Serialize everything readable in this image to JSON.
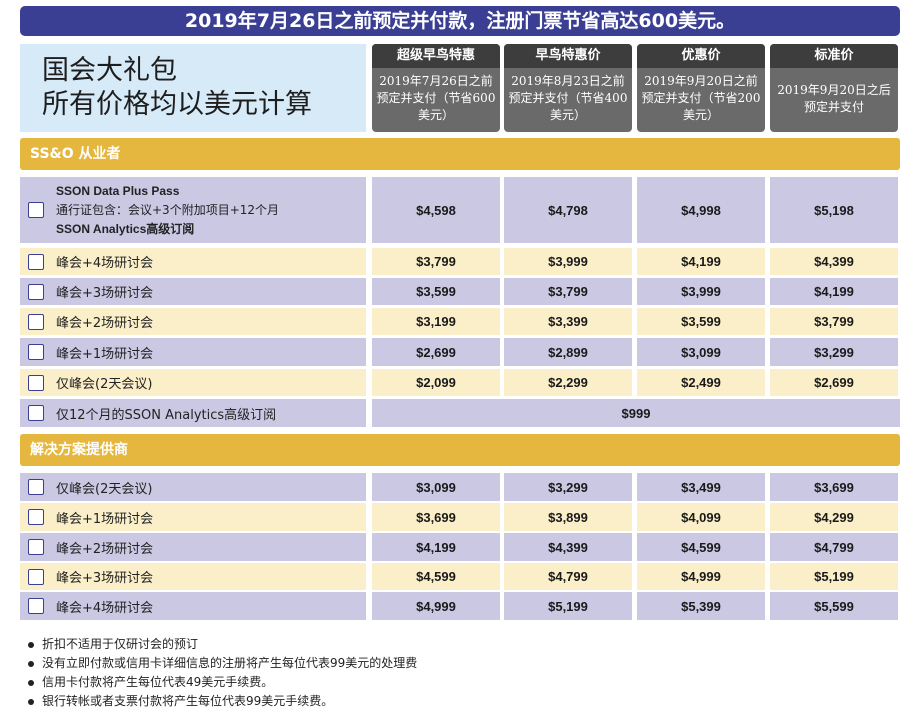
{
  "banner": "2019年7月26日之前预定并付款，注册门票节省高达600美元。",
  "title": {
    "line1": "国会大礼包",
    "line2": "所有价格均以美元计算"
  },
  "tiers": [
    {
      "name": "超级早鸟特惠",
      "desc": "2019年7月26日之前预定并支付（节省600美元）"
    },
    {
      "name": "早鸟特惠价",
      "desc": "2019年8月23日之前预定并支付（节省400美元）"
    },
    {
      "name": "优惠价",
      "desc": "2019年9月20日之前预定并支付（节省200美元）"
    },
    {
      "name": "标准价",
      "desc": "2019年9月20日之后预定并支付"
    }
  ],
  "sections": {
    "practitioners": {
      "title": "SS&O 从业者",
      "data_plus": {
        "name": "SSON Data Plus Pass",
        "detail": "通行证包含：会议+3个附加项目+12个月",
        "detail2": "SSON Analytics高级订阅",
        "prices": [
          "$4,598",
          "$4,798",
          "$4,998",
          "$5,198"
        ]
      },
      "rows": [
        {
          "label": "峰会+4场研讨会",
          "prices": [
            "$3,799",
            "$3,999",
            "$4,199",
            "$4,399"
          ]
        },
        {
          "label": "峰会+3场研讨会",
          "prices": [
            "$3,599",
            "$3,799",
            "$3,999",
            "$4,199"
          ]
        },
        {
          "label": "峰会+2场研讨会",
          "prices": [
            "$3,199",
            "$3,399",
            "$3,599",
            "$3,799"
          ]
        },
        {
          "label": "峰会+1场研讨会",
          "prices": [
            "$2,699",
            "$2,899",
            "$3,099",
            "$3,299"
          ]
        },
        {
          "label": "仅峰会(2天会议)",
          "prices": [
            "$2,099",
            "$2,299",
            "$2,499",
            "$2,699"
          ]
        }
      ],
      "analytics_only": {
        "label": "仅12个月的SSON Analytics高级订阅",
        "price": "$999"
      }
    },
    "providers": {
      "title": "解决方案提供商",
      "rows": [
        {
          "label": "仅峰会(2天会议)",
          "prices": [
            "$3,099",
            "$3,299",
            "$3,499",
            "$3,699"
          ]
        },
        {
          "label": "峰会+1场研讨会",
          "prices": [
            "$3,699",
            "$3,899",
            "$4,099",
            "$4,299"
          ]
        },
        {
          "label": "峰会+2场研讨会",
          "prices": [
            "$4,199",
            "$4,399",
            "$4,599",
            "$4,799"
          ]
        },
        {
          "label": "峰会+3场研讨会",
          "prices": [
            "$4,599",
            "$4,799",
            "$4,999",
            "$5,199"
          ]
        },
        {
          "label": "峰会+4场研讨会",
          "prices": [
            "$4,999",
            "$5,199",
            "$5,399",
            "$5,599"
          ]
        }
      ]
    }
  },
  "notes": [
    "折扣不适用于仅研讨会的预订",
    "没有立即付款或信用卡详细信息的注册将产生每位代表99美元的处理费",
    "信用卡付款将产生每位代表49美元手续费。",
    "银行转帐或者支票付款将产生每位代表99美元手续费。"
  ],
  "colors": {
    "banner": "#3a3f94",
    "section_bar": "#e6b73e",
    "lavender_row": "#cbc8e4",
    "cream_row": "#fbefc9",
    "title_box": "#d7eaf7",
    "tier_header": "#3d3d3d",
    "tier_body": "#6a6a6a"
  }
}
